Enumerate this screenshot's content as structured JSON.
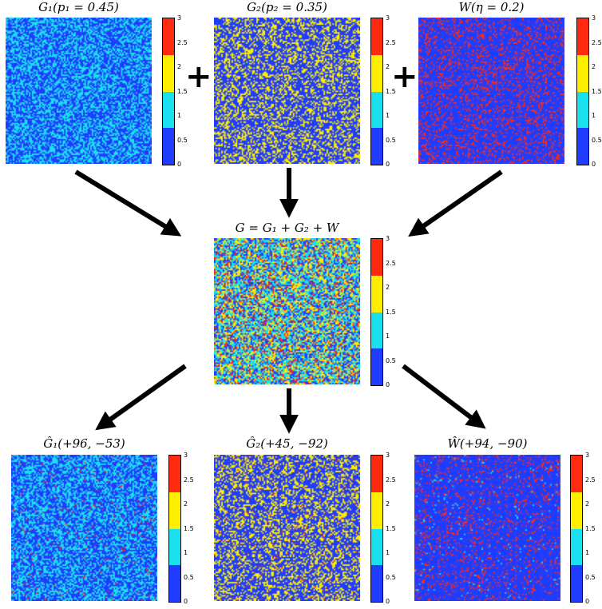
{
  "colors": {
    "v0": "#1f3cff",
    "v1": "#19e0ee",
    "v2": "#ffee00",
    "v3": "#ff2a10"
  },
  "colorbar_ticks": [
    "0",
    "0.5",
    "1",
    "1.5",
    "2",
    "2.5",
    "3"
  ],
  "operators": {
    "plus": "+"
  },
  "panels": {
    "g1": {
      "title": "G₁(p₁ = 0.45)",
      "fractions": [
        0.55,
        0.45,
        0.0,
        0.0
      ]
    },
    "g2": {
      "title": "G₂(p₂ = 0.35)",
      "fractions": [
        0.65,
        0.0,
        0.35,
        0.0
      ]
    },
    "w": {
      "title": "W(η = 0.2)",
      "fractions": [
        0.8,
        0.0,
        0.0,
        0.2
      ]
    },
    "g": {
      "title": "G = G₁ + G₂ + W",
      "fractions": [
        0.28,
        0.35,
        0.25,
        0.12
      ]
    },
    "g1hat": {
      "title": "Ĝ₁(+96, −53)",
      "fractions": [
        0.55,
        0.43,
        0.0,
        0.02
      ]
    },
    "g2hat": {
      "title": "Ĝ₂(+45, −92)",
      "fractions": [
        0.64,
        0.0,
        0.34,
        0.02
      ]
    },
    "what": {
      "title": "Ŵ(+94, −90)",
      "fractions": [
        0.86,
        0.02,
        0.0,
        0.12
      ]
    }
  }
}
